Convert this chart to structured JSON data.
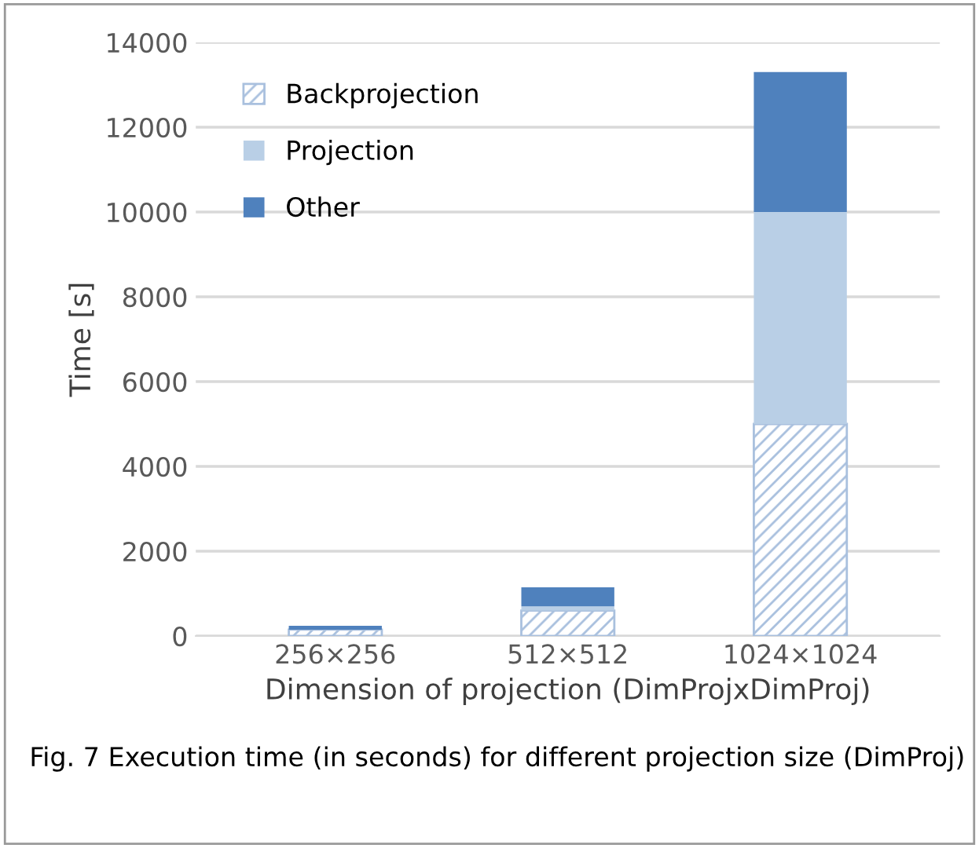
{
  "chart_data": {
    "type": "bar",
    "stacked": true,
    "xlabel": "Dimension of projection (DimProjxDimProj)",
    "ylabel": "Time [s]",
    "categories": [
      "256×256",
      "512×512",
      "1024×1024"
    ],
    "series": [
      {
        "name": "Backprojection",
        "color": "#a9c0de",
        "values": [
          150,
          600,
          5000
        ]
      },
      {
        "name": "Projection",
        "color": "#b9cfe6",
        "values": [
          null,
          100,
          5000
        ]
      },
      {
        "name": "Other",
        "color": "#4f81bd",
        "values": [
          90,
          450,
          3300
        ]
      }
    ],
    "ylim": [
      0,
      14000
    ],
    "yticks": [
      0,
      2000,
      4000,
      6000,
      8000,
      10000,
      12000,
      14000
    ],
    "grid": "y",
    "legend": "top left",
    "annotations": [
      "Fig. 7 Execution time (in seconds) for different projection size (DimProj)"
    ]
  }
}
